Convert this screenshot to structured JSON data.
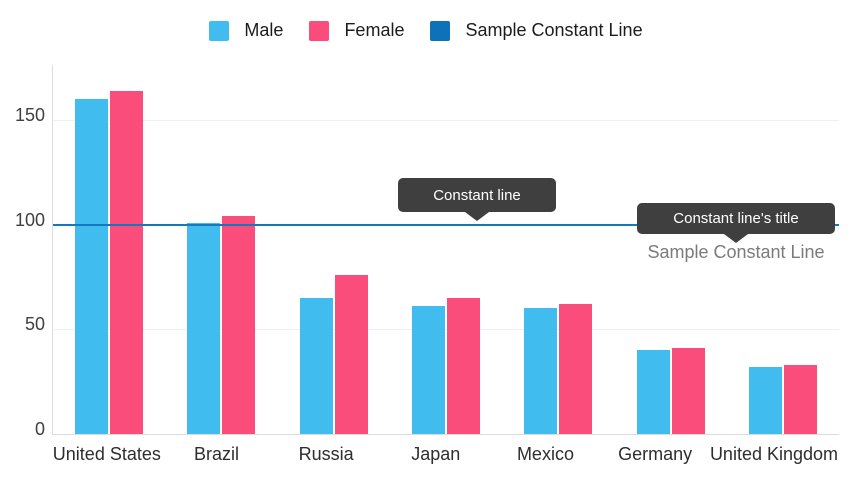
{
  "legend": {
    "items": [
      {
        "label": "Male",
        "color": "#41BCEF"
      },
      {
        "label": "Female",
        "color": "#FB4D7B"
      },
      {
        "label": "Sample Constant Line",
        "color": "#0D72B8"
      }
    ]
  },
  "chart_data": {
    "type": "bar",
    "title": "",
    "categories": [
      "United States",
      "Brazil",
      "Russia",
      "Japan",
      "Mexico",
      "Germany",
      "United Kingdom"
    ],
    "series": [
      {
        "name": "Male",
        "color": "#41BCEF",
        "values": [
          160,
          101,
          65,
          61,
          60,
          40,
          32
        ]
      },
      {
        "name": "Female",
        "color": "#FB4D7B",
        "values": [
          164,
          104,
          76,
          65,
          62,
          41,
          33
        ]
      }
    ],
    "xlabel": "",
    "ylabel": "",
    "y_ticks": [
      0,
      50,
      100,
      150
    ],
    "ylim": [
      0,
      176.3
    ],
    "grid": true,
    "legend_position": "top",
    "constant_line": {
      "value": 100,
      "color": "#1478BE",
      "title": "Sample Constant Line"
    }
  },
  "callouts": {
    "constant_line": "Constant line",
    "constant_line_title": "Constant line's title"
  },
  "colors": {
    "tooltip_bg": "#3F3F3F",
    "axis_line": "#DCDCDC",
    "gridline": "#F0F0F0",
    "constant_line_title_text": "#7B7B7B"
  }
}
